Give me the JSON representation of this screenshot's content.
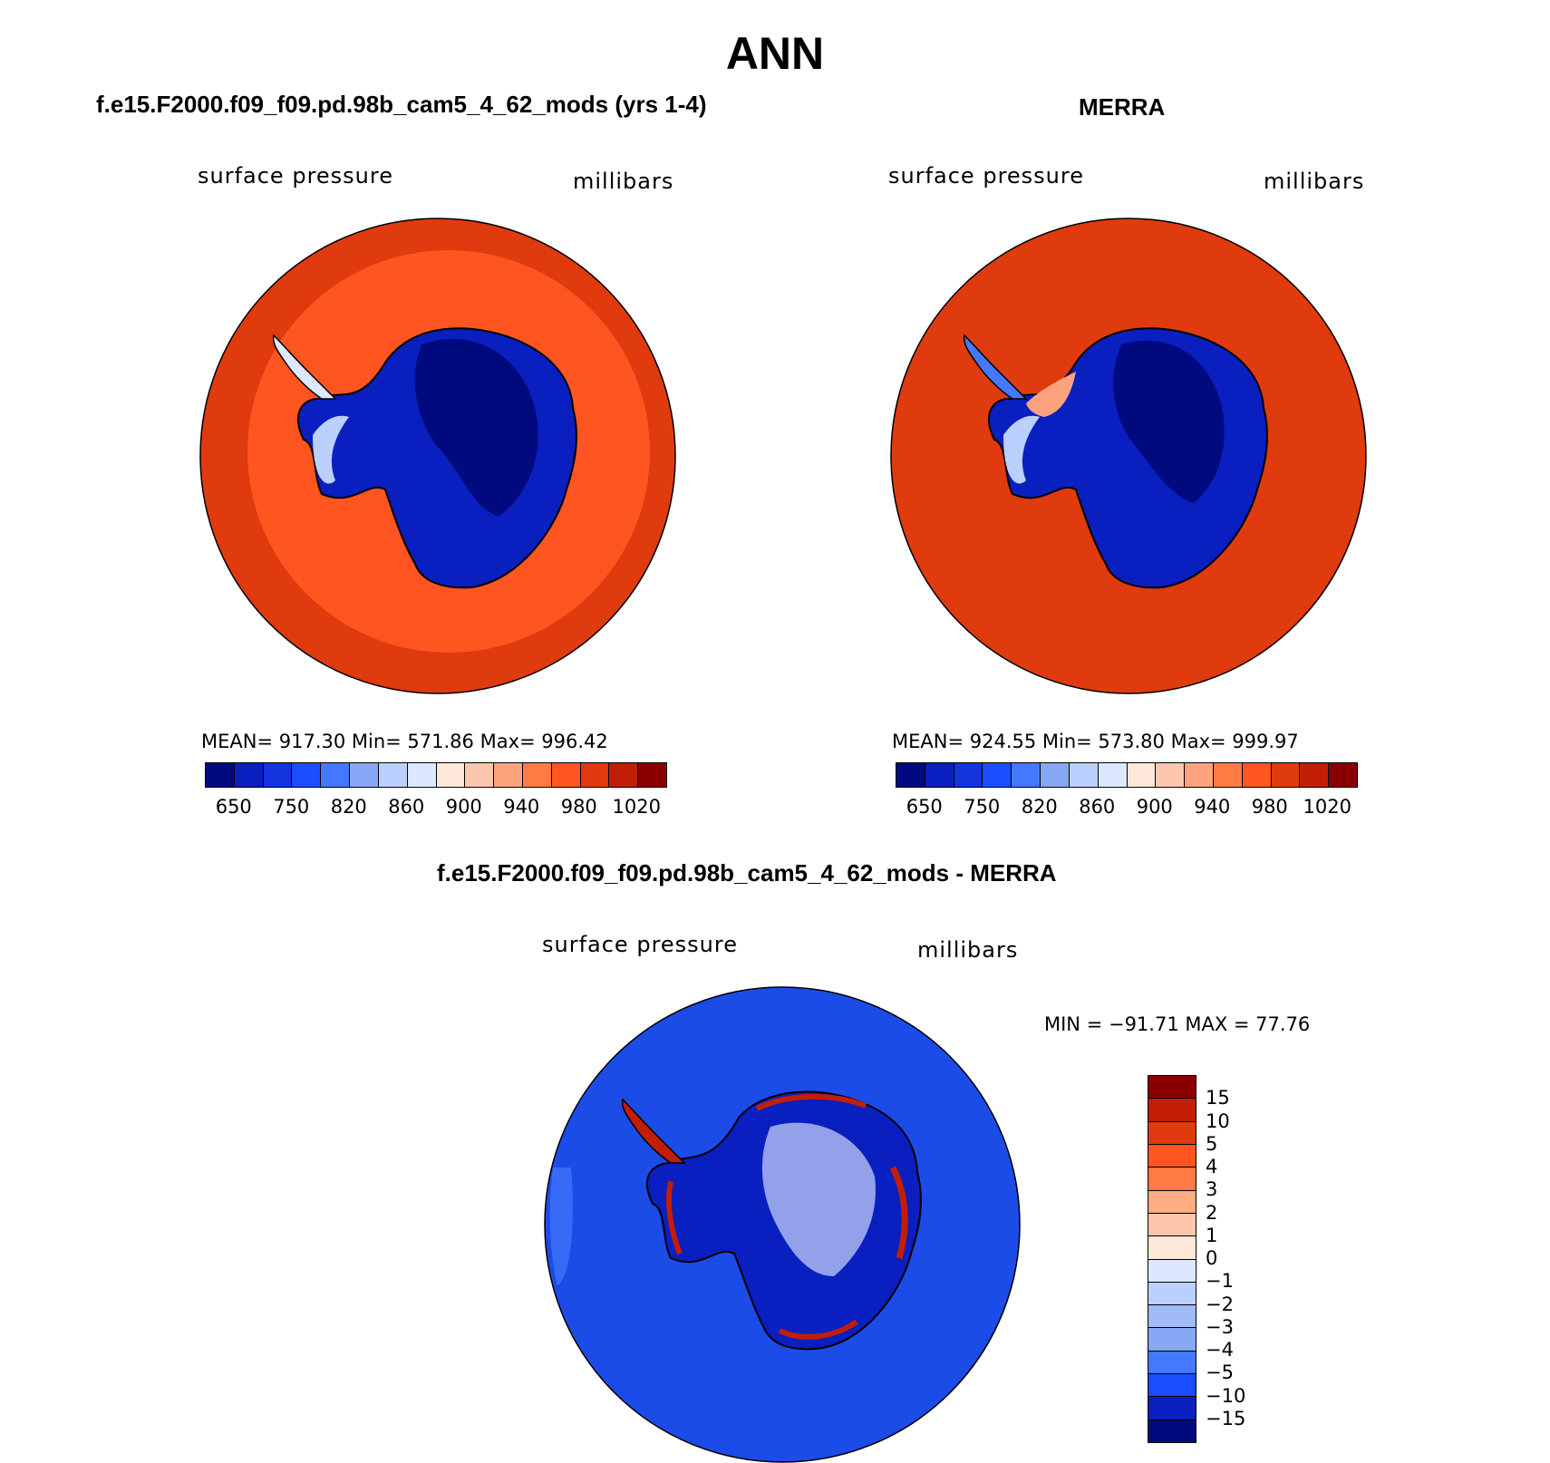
{
  "title": "ANN",
  "colors": {
    "outline": "#000000",
    "background": "#ffffff"
  },
  "panels": [
    {
      "title": "f.e15.F2000.f09_f09.pd.98b_cam5_4_62_mods (yrs 1-4)",
      "left_label": "surface pressure",
      "right_label": "millibars",
      "stats_text": "MEAN= 917.30   Min= 571.86   Max= 996.42",
      "outer_color": "#e03a0f",
      "ring_color": "#ff5520",
      "interior_color": "#0a1fbf"
    },
    {
      "title": "MERRA",
      "left_label": "surface pressure",
      "right_label": "millibars",
      "stats_text": "MEAN= 924.55   Min= 573.80   Max= 999.97",
      "outer_color": "#e03a0f",
      "ring_color": "#e03a0f",
      "interior_color": "#0a1fbf"
    }
  ],
  "abs_colorbar": {
    "colors": [
      "#000a7f",
      "#0a1fbf",
      "#1533df",
      "#1c4cff",
      "#4478ff",
      "#86a8f5",
      "#bcd0ff",
      "#dbe8ff",
      "#fde7d8",
      "#fdc7ae",
      "#fca37d",
      "#ff7a45",
      "#ff5520",
      "#e03a0f",
      "#c21e05",
      "#8a0000"
    ],
    "labels": [
      "650",
      "750",
      "820",
      "860",
      "900",
      "940",
      "980",
      "1020"
    ]
  },
  "diff_panel": {
    "title": "f.e15.F2000.f09_f09.pd.98b_cam5_4_62_mods - MERRA",
    "left_label": "surface pressure",
    "right_label": "millibars",
    "minmax_text": "MIN = −91.71 MAX =   77.76",
    "ocean_color": "#1c4ce8",
    "colorbar": {
      "colors": [
        "#8a0000",
        "#c21e05",
        "#e03a0f",
        "#ff5520",
        "#ff7a45",
        "#fdab80",
        "#fdc7ae",
        "#fde7d8",
        "#dbe8ff",
        "#bcd0ff",
        "#a0bcf8",
        "#86a8f5",
        "#4478ff",
        "#1c4cff",
        "#0a1fbf",
        "#000a7f"
      ],
      "labels": [
        "15",
        "10",
        "5",
        "4",
        "3",
        "2",
        "1",
        "0",
        "−1",
        "−2",
        "−3",
        "−4",
        "−5",
        "−10",
        "−15"
      ]
    }
  }
}
